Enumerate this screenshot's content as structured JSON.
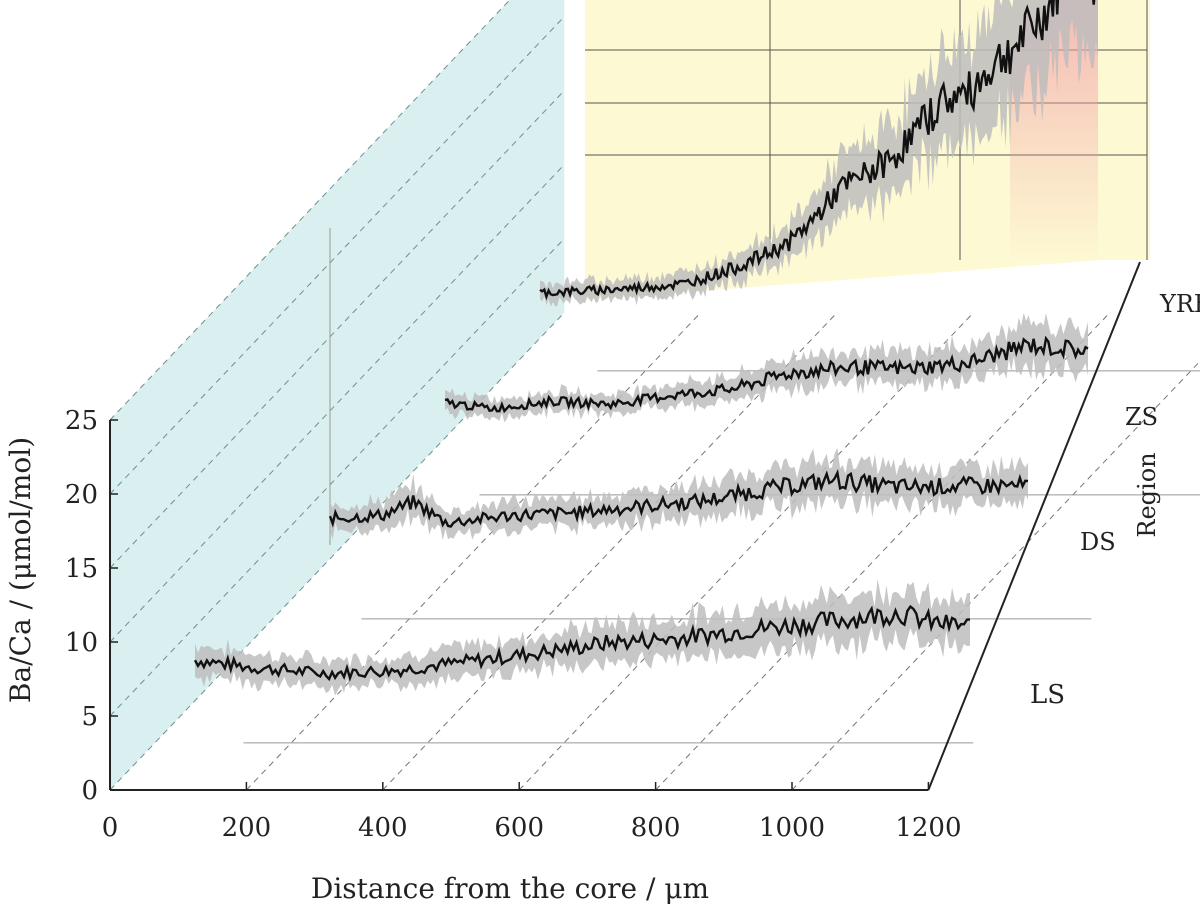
{
  "chart_data": {
    "type": "line",
    "projection": "3d-waterfall",
    "xlabel": "Distance from the core / μm",
    "ylabel": "Ba/Ca / (μmol/mol)",
    "zlabel": "Region",
    "xlim": [
      0,
      1200
    ],
    "ylim": [
      0,
      25
    ],
    "xticks": [
      "0",
      "200",
      "400",
      "600",
      "800",
      "1000",
      "1200"
    ],
    "yticks": [
      "0",
      "5",
      "10",
      "15",
      "20",
      "25"
    ],
    "grid": true,
    "colors": {
      "line": "#111111",
      "band": "#bdbdbd",
      "back_wall": "#fdf9d2",
      "side_wall": "#d9eff0",
      "highlight": "#f2a0a8"
    },
    "series": [
      {
        "name": "LS",
        "x": [
          120,
          200,
          300,
          400,
          500,
          600,
          700,
          800,
          900,
          1000,
          1050,
          1100,
          1150,
          1200
        ],
        "y": [
          2.7,
          2.2,
          1.8,
          2.0,
          2.6,
          3.2,
          3.9,
          4.2,
          4.8,
          5.3,
          5.6,
          5.9,
          5.2,
          5.0
        ]
      },
      {
        "name": "DS",
        "x": [
          120,
          200,
          250,
          300,
          400,
          500,
          600,
          700,
          800,
          900,
          1000,
          1100,
          1200
        ],
        "y": [
          1.8,
          2.0,
          2.9,
          1.5,
          2.0,
          2.2,
          2.6,
          3.0,
          3.8,
          4.4,
          3.9,
          4.0,
          4.0
        ]
      },
      {
        "name": "ZS",
        "x": [
          120,
          200,
          300,
          400,
          500,
          600,
          700,
          800,
          900,
          1000,
          1100,
          1200
        ],
        "y": [
          0.7,
          0.3,
          0.8,
          0.6,
          1.2,
          1.6,
          2.7,
          3.1,
          3.0,
          3.4,
          4.6,
          4.2
        ]
      },
      {
        "name": "YRE",
        "x": [
          120,
          200,
          300,
          400,
          500,
          600,
          650,
          700,
          750,
          800,
          850,
          900,
          950,
          1000,
          1050,
          1100,
          1150,
          1200
        ],
        "y": [
          0.5,
          0.6,
          0.8,
          1.1,
          2.2,
          3.8,
          5.5,
          7.5,
          8.5,
          9.5,
          11.5,
          13.5,
          14.0,
          16.0,
          17.5,
          19.5,
          23.0,
          21.5
        ]
      }
    ]
  }
}
